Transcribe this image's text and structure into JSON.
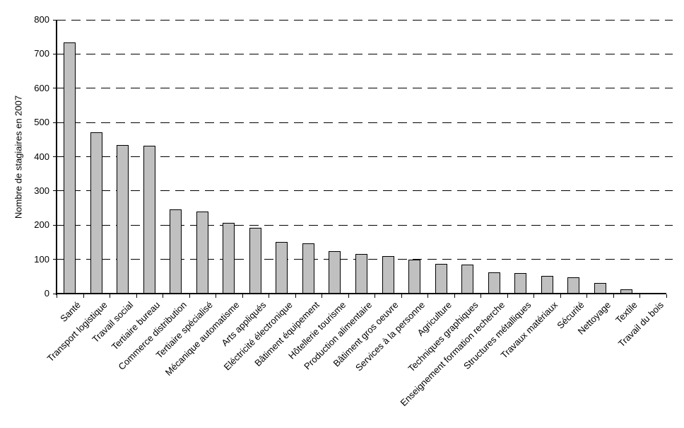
{
  "chart_data": {
    "type": "bar",
    "title": "",
    "xlabel": "",
    "ylabel": "Nombre de stagiaires en 2007",
    "ylim": [
      0,
      800
    ],
    "yticks": [
      0,
      100,
      200,
      300,
      400,
      500,
      600,
      700,
      800
    ],
    "grid": "horizontal-dashed",
    "legend": "none",
    "bar_fill_color": "#c0c0c0",
    "bar_border_color": "#000000",
    "categories": [
      "Santé",
      "Transport logistique",
      "Travail social",
      "Tertiaire bureau",
      "Commerce distribution",
      "Tertiaire spécialisé",
      "Mécanique automatisme",
      "Arts appliqués",
      "Eléctricité électronique",
      "Bâtiment équipement",
      "Hôtellerie tourisme",
      "Production alimentaire",
      "Bâtiment gros oeuvre",
      "Services à la personne",
      "Agriculture",
      "Techniques graphiques",
      "Enseignement formation recherche",
      "Structures métalliques",
      "Travaux matériaux",
      "Sécurité",
      "Nettoyage",
      "Textile",
      "Travail du bois"
    ],
    "values": [
      733,
      471,
      434,
      432,
      247,
      240,
      207,
      193,
      151,
      147,
      124,
      116,
      110,
      100,
      86,
      84,
      63,
      60,
      52,
      47,
      30,
      12,
      0
    ]
  }
}
